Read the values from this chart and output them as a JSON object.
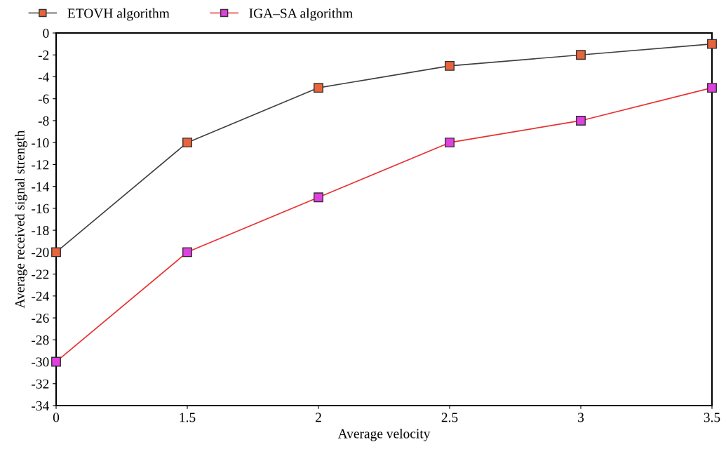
{
  "chart_data": {
    "type": "line",
    "xlabel": "Average velocity",
    "ylabel": "Average received signal strength",
    "categories": [
      "0",
      "1.5",
      "2",
      "2.5",
      "3",
      "3.5"
    ],
    "series": [
      {
        "name": "ETOVH algorithm",
        "color": "#e8643c",
        "values": [
          -20,
          -10,
          -5,
          -3,
          -2,
          -1
        ]
      },
      {
        "name": "IGA–SA algorithm",
        "color": "#e040e0",
        "values": [
          -30,
          -20,
          -15,
          -10,
          -8,
          -5
        ]
      }
    ],
    "ylim": [
      -34,
      0
    ],
    "yticks": [
      -34,
      -32,
      -30,
      -28,
      -26,
      -24,
      -22,
      -20,
      -18,
      -16,
      -14,
      -12,
      -10,
      -8,
      -6,
      -4,
      -2,
      0
    ],
    "marker": "square",
    "legend": "top left",
    "grid": false
  }
}
